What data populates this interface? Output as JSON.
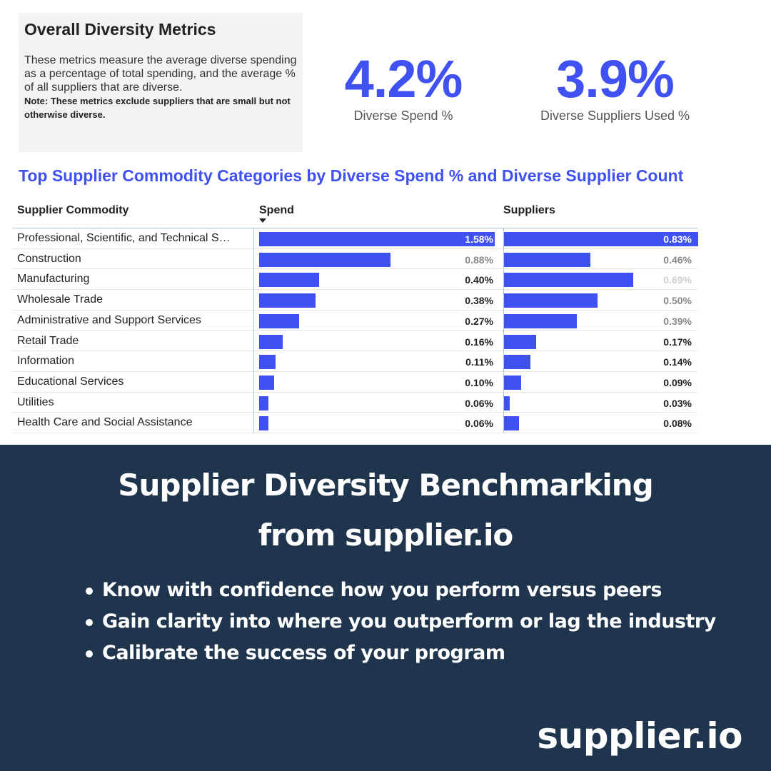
{
  "metrics_card": {
    "title": "Overall Diversity Metrics",
    "description": "These metrics measure the average diverse spending as a percentage of total spending, and the average % of all suppliers that are diverse.",
    "note": "Note: These metrics exclude suppliers that are small but not otherwise diverse."
  },
  "kpis": {
    "spend": {
      "value": "4.2%",
      "label": "Diverse Spend %"
    },
    "suppliers": {
      "value": "3.9%",
      "label": "Diverse Suppliers Used %"
    }
  },
  "colors": {
    "accent": "#3f51f0",
    "banner": "#1f344d"
  },
  "chart_data": {
    "type": "table",
    "title": "Top Supplier Commodity Categories by Diverse Spend % and Diverse Supplier Count",
    "columns": [
      "Supplier Commodity",
      "Spend",
      "Suppliers"
    ],
    "sorted_by": "Spend",
    "sort_direction": "descending",
    "rows": [
      {
        "category": "Professional, Scientific, and Technical S…",
        "spend": 1.58,
        "spend_label": "1.58%",
        "suppliers": 0.83,
        "suppliers_label": "0.83%"
      },
      {
        "category": "Construction",
        "spend": 0.88,
        "spend_label": "0.88%",
        "suppliers": 0.46,
        "suppliers_label": "0.46%"
      },
      {
        "category": "Manufacturing",
        "spend": 0.4,
        "spend_label": "0.40%",
        "suppliers": 0.69,
        "suppliers_label": "0.69%"
      },
      {
        "category": "Wholesale Trade",
        "spend": 0.38,
        "spend_label": "0.38%",
        "suppliers": 0.5,
        "suppliers_label": "0.50%"
      },
      {
        "category": "Administrative and Support Services",
        "spend": 0.27,
        "spend_label": "0.27%",
        "suppliers": 0.39,
        "suppliers_label": "0.39%"
      },
      {
        "category": "Retail Trade",
        "spend": 0.16,
        "spend_label": "0.16%",
        "suppliers": 0.17,
        "suppliers_label": "0.17%"
      },
      {
        "category": "Information",
        "spend": 0.11,
        "spend_label": "0.11%",
        "suppliers": 0.14,
        "suppliers_label": "0.14%"
      },
      {
        "category": "Educational Services",
        "spend": 0.1,
        "spend_label": "0.10%",
        "suppliers": 0.09,
        "suppliers_label": "0.09%"
      },
      {
        "category": "Utilities",
        "spend": 0.06,
        "spend_label": "0.06%",
        "suppliers": 0.03,
        "suppliers_label": "0.03%"
      },
      {
        "category": "Health Care and Social Assistance",
        "spend": 0.06,
        "spend_label": "0.06%",
        "suppliers": 0.08,
        "suppliers_label": "0.08%"
      }
    ]
  },
  "banner": {
    "headline_line1": "Supplier Diversity Benchmarking",
    "headline_line2": "from supplier.io",
    "bullets": [
      "Know with confidence how you perform versus peers",
      "Gain clarity into where you outperform or lag the industry",
      "Calibrate the success of your program"
    ],
    "logo_text": "supplier.io"
  }
}
